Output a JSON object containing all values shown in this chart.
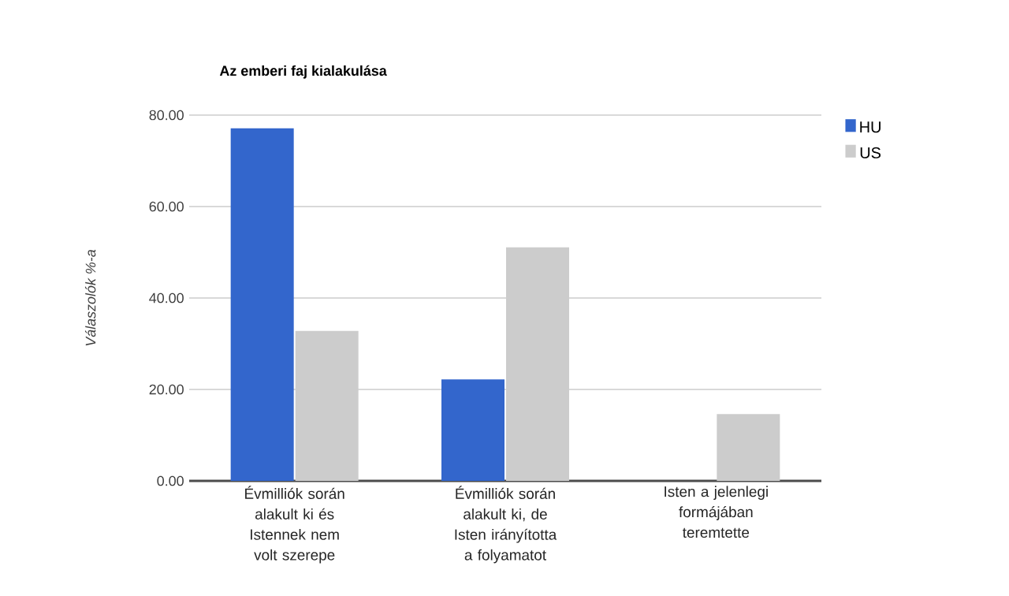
{
  "chart_data": {
    "type": "bar",
    "title": "Az emberi faj kialakulása",
    "ylabel": "Válaszolók %-a",
    "categories": [
      "Évmilliók során alakult ki és Istennek nem volt szerepe",
      "Évmilliók során alakult ki, de Isten irányította a folyamatot",
      "Isten a jelenlegi formájában teremtette"
    ],
    "series": [
      {
        "name": "HU",
        "color": "#3366cc",
        "values": [
          77.1,
          22.2,
          0
        ]
      },
      {
        "name": "US",
        "color": "#cccccc",
        "values": [
          32.8,
          51.1,
          14.6
        ]
      }
    ],
    "ylim": [
      0,
      80
    ],
    "yticks": [
      {
        "value": 0,
        "label": "0.00"
      },
      {
        "value": 20,
        "label": "20.00"
      },
      {
        "value": 40,
        "label": "40.00"
      },
      {
        "value": 60,
        "label": "60.00"
      },
      {
        "value": 80,
        "label": "80.00"
      }
    ],
    "grid": "y",
    "legend": "top right"
  }
}
